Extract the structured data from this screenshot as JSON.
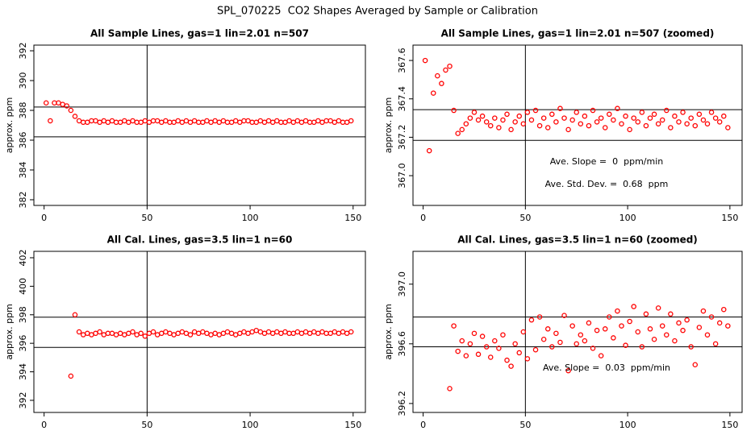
{
  "title": "SPL_070225  CO2 Shapes Averaged by Sample or Calibration",
  "chart_data": [
    {
      "type": "scatter",
      "title": "All Sample Lines, gas=1 lin=2.01 n=507",
      "ylabel": "approx. ppm",
      "color": "#ff0000",
      "xlim": [
        -4.96,
        155.96
      ],
      "ylim": [
        381.62,
        392.38
      ],
      "xticks": [
        0,
        50,
        100,
        150
      ],
      "yticks": [
        382,
        384,
        386,
        388,
        390,
        392
      ],
      "hlines": [
        388.22,
        386.22
      ],
      "vlines": [
        50
      ],
      "annotations": [],
      "x": [
        1,
        3,
        5,
        7,
        9,
        11,
        13,
        15,
        17,
        19,
        21,
        23,
        25,
        27,
        29,
        31,
        33,
        35,
        37,
        39,
        41,
        43,
        45,
        47,
        49,
        51,
        53,
        55,
        57,
        59,
        61,
        63,
        65,
        67,
        69,
        71,
        73,
        75,
        77,
        79,
        81,
        83,
        85,
        87,
        89,
        91,
        93,
        95,
        97,
        99,
        101,
        103,
        105,
        107,
        109,
        111,
        113,
        115,
        117,
        119,
        121,
        123,
        125,
        127,
        129,
        131,
        133,
        135,
        137,
        139,
        141,
        143,
        145,
        147,
        149
      ],
      "values": [
        388.5,
        387.3,
        388.5,
        388.5,
        388.4,
        388.3,
        388.0,
        387.6,
        387.3,
        387.2,
        387.2,
        387.3,
        387.3,
        387.2,
        387.3,
        387.2,
        387.3,
        387.2,
        387.2,
        387.3,
        387.2,
        387.3,
        387.2,
        387.2,
        387.3,
        387.2,
        387.3,
        387.3,
        387.2,
        387.3,
        387.2,
        387.2,
        387.3,
        387.2,
        387.3,
        387.2,
        387.3,
        387.2,
        387.2,
        387.3,
        387.2,
        387.3,
        387.2,
        387.3,
        387.2,
        387.2,
        387.3,
        387.2,
        387.3,
        387.3,
        387.2,
        387.2,
        387.3,
        387.2,
        387.3,
        387.2,
        387.3,
        387.2,
        387.2,
        387.3,
        387.2,
        387.3,
        387.2,
        387.3,
        387.2,
        387.2,
        387.3,
        387.2,
        387.3,
        387.3,
        387.2,
        387.3,
        387.2,
        387.2,
        387.3
      ]
    },
    {
      "type": "scatter",
      "title": "All Sample Lines, gas=1 lin=2.01 n=507 (zoomed)",
      "ylabel": "approx. ppm",
      "color": "#ff0000",
      "xlim": [
        -4.96,
        155.96
      ],
      "ylim": [
        366.845,
        367.68
      ],
      "xticks": [
        0,
        50,
        100,
        150
      ],
      "yticks": [
        {
          "value": 367,
          "label": "367.0"
        },
        367.2,
        367.4,
        367.6
      ],
      "hlines": [
        367.344,
        367.184
      ],
      "vlines": [
        50
      ],
      "annotations": [
        "Ave. Slope =  0  ppm/min",
        "Ave. Std. Dev. =  0.68  ppm"
      ],
      "x": [
        1,
        3,
        5,
        7,
        9,
        11,
        13,
        15,
        17,
        19,
        21,
        23,
        25,
        27,
        29,
        31,
        33,
        35,
        37,
        39,
        41,
        43,
        45,
        47,
        49,
        51,
        53,
        55,
        57,
        59,
        61,
        63,
        65,
        67,
        69,
        71,
        73,
        75,
        77,
        79,
        81,
        83,
        85,
        87,
        89,
        91,
        93,
        95,
        97,
        99,
        101,
        103,
        105,
        107,
        109,
        111,
        113,
        115,
        117,
        119,
        121,
        123,
        125,
        127,
        129,
        131,
        133,
        135,
        137,
        139,
        141,
        143,
        145,
        147,
        149
      ],
      "values": [
        367.6,
        367.13,
        367.43,
        367.52,
        367.48,
        367.55,
        367.57,
        367.34,
        367.22,
        367.24,
        367.27,
        367.3,
        367.33,
        367.29,
        367.31,
        367.28,
        367.26,
        367.3,
        367.25,
        367.29,
        367.32,
        367.24,
        367.28,
        367.31,
        367.27,
        367.33,
        367.29,
        367.34,
        367.26,
        367.3,
        367.25,
        367.32,
        367.28,
        367.35,
        367.3,
        367.24,
        367.29,
        367.33,
        367.27,
        367.31,
        367.26,
        367.34,
        367.28,
        367.3,
        367.25,
        367.32,
        367.29,
        367.35,
        367.27,
        367.31,
        367.24,
        367.3,
        367.28,
        367.33,
        367.26,
        367.3,
        367.32,
        367.27,
        367.29,
        367.34,
        367.25,
        367.31,
        367.28,
        367.33,
        367.27,
        367.3,
        367.26,
        367.32,
        367.29,
        367.27,
        367.33,
        367.3,
        367.28,
        367.31,
        367.25
      ]
    },
    {
      "type": "scatter",
      "title": "All Cal. Lines, gas=3.5 lin=1 n=60",
      "ylabel": "approx. ppm",
      "color": "#ff0000",
      "xlim": [
        -4.96,
        155.96
      ],
      "ylim": [
        391.15,
        402.45
      ],
      "xticks": [
        0,
        50,
        100,
        150
      ],
      "yticks": [
        392,
        394,
        396,
        398,
        400,
        402
      ],
      "hlines": [
        397.83,
        395.71
      ],
      "vlines": [
        50
      ],
      "annotations": [],
      "x": [
        13,
        15,
        17,
        19,
        21,
        23,
        25,
        27,
        29,
        31,
        33,
        35,
        37,
        39,
        41,
        43,
        45,
        47,
        49,
        51,
        53,
        55,
        57,
        59,
        61,
        63,
        65,
        67,
        69,
        71,
        73,
        75,
        77,
        79,
        81,
        83,
        85,
        87,
        89,
        91,
        93,
        95,
        97,
        99,
        101,
        103,
        105,
        107,
        109,
        111,
        113,
        115,
        117,
        119,
        121,
        123,
        125,
        127,
        129,
        131,
        133,
        135,
        137,
        139,
        141,
        143,
        145,
        147,
        149
      ],
      "values": [
        393.7,
        398.0,
        396.8,
        396.6,
        396.7,
        396.6,
        396.7,
        396.8,
        396.6,
        396.7,
        396.7,
        396.6,
        396.7,
        396.6,
        396.7,
        396.8,
        396.6,
        396.7,
        396.5,
        396.7,
        396.8,
        396.6,
        396.7,
        396.8,
        396.7,
        396.6,
        396.7,
        396.8,
        396.7,
        396.6,
        396.8,
        396.7,
        396.8,
        396.7,
        396.6,
        396.7,
        396.6,
        396.7,
        396.8,
        396.7,
        396.6,
        396.7,
        396.8,
        396.7,
        396.8,
        396.9,
        396.8,
        396.7,
        396.8,
        396.7,
        396.8,
        396.7,
        396.8,
        396.7,
        396.7,
        396.8,
        396.7,
        396.8,
        396.7,
        396.8,
        396.7,
        396.8,
        396.7,
        396.7,
        396.8,
        396.7,
        396.8,
        396.7,
        396.8
      ]
    },
    {
      "type": "scatter",
      "title": "All Cal. Lines, gas=3.5 lin=1 n=60 (zoomed)",
      "ylabel": "approx. ppm",
      "color": "#ff0000",
      "xlim": [
        -4.96,
        155.96
      ],
      "ylim": [
        396.14,
        397.22
      ],
      "xticks": [
        0,
        50,
        100,
        150
      ],
      "yticks": [
        396.2,
        396.6,
        {
          "value": 397,
          "label": "397.0"
        }
      ],
      "hlines": [
        396.78,
        396.58
      ],
      "vlines": [
        50
      ],
      "annotations": [
        "Ave. Slope =  0.03  ppm/min"
      ],
      "x": [
        13,
        15,
        17,
        19,
        21,
        23,
        25,
        27,
        29,
        31,
        33,
        35,
        37,
        39,
        41,
        43,
        45,
        47,
        49,
        51,
        53,
        55,
        57,
        59,
        61,
        63,
        65,
        67,
        69,
        71,
        73,
        75,
        77,
        79,
        81,
        83,
        85,
        87,
        89,
        91,
        93,
        95,
        97,
        99,
        101,
        103,
        105,
        107,
        109,
        111,
        113,
        115,
        117,
        119,
        121,
        123,
        125,
        127,
        129,
        131,
        133,
        135,
        137,
        139,
        141,
        143,
        145,
        147,
        149
      ],
      "values": [
        396.3,
        396.72,
        396.55,
        396.62,
        396.52,
        396.6,
        396.67,
        396.53,
        396.65,
        396.58,
        396.51,
        396.62,
        396.57,
        396.66,
        396.49,
        396.45,
        396.6,
        396.54,
        396.68,
        396.5,
        396.76,
        396.56,
        396.78,
        396.63,
        396.7,
        396.58,
        396.67,
        396.61,
        396.79,
        396.42,
        396.72,
        396.6,
        396.66,
        396.62,
        396.74,
        396.57,
        396.69,
        396.52,
        396.7,
        396.78,
        396.64,
        396.82,
        396.72,
        396.59,
        396.75,
        396.85,
        396.68,
        396.58,
        396.8,
        396.7,
        396.63,
        396.84,
        396.72,
        396.66,
        396.8,
        396.62,
        396.74,
        396.69,
        396.76,
        396.58,
        396.46,
        396.71,
        396.82,
        396.66,
        396.78,
        396.6,
        396.74,
        396.83,
        396.72
      ]
    }
  ]
}
